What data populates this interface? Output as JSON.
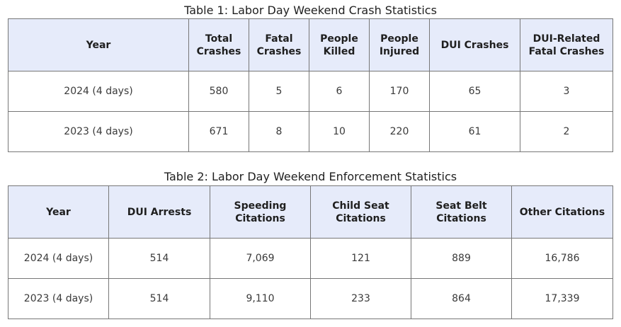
{
  "table1": {
    "caption": "Table 1: Labor Day Weekend Crash Statistics",
    "headers": [
      "Year",
      "Total Crashes",
      "Fatal Crashes",
      "People Killed",
      "People Injured",
      "DUI Crashes",
      "DUI-Related Fatal Crashes"
    ],
    "rows": [
      [
        "2024 (4 days)",
        "580",
        "5",
        "6",
        "170",
        "65",
        "3"
      ],
      [
        "2023 (4 days)",
        "671",
        "8",
        "10",
        "220",
        "61",
        "2"
      ]
    ]
  },
  "table2": {
    "caption": "Table 2: Labor Day Weekend Enforcement Statistics",
    "headers": [
      "Year",
      "DUI Arrests",
      "Speeding Citations",
      "Child Seat Citations",
      "Seat Belt Citations",
      "Other Citations"
    ],
    "rows": [
      [
        "2024 (4 days)",
        "514",
        "7,069",
        "121",
        "889",
        "16,786"
      ],
      [
        "2023 (4 days)",
        "514",
        "9,110",
        "233",
        "864",
        "17,339"
      ]
    ]
  },
  "colors": {
    "header_background": "#e6ebfa",
    "border": "#777777"
  }
}
